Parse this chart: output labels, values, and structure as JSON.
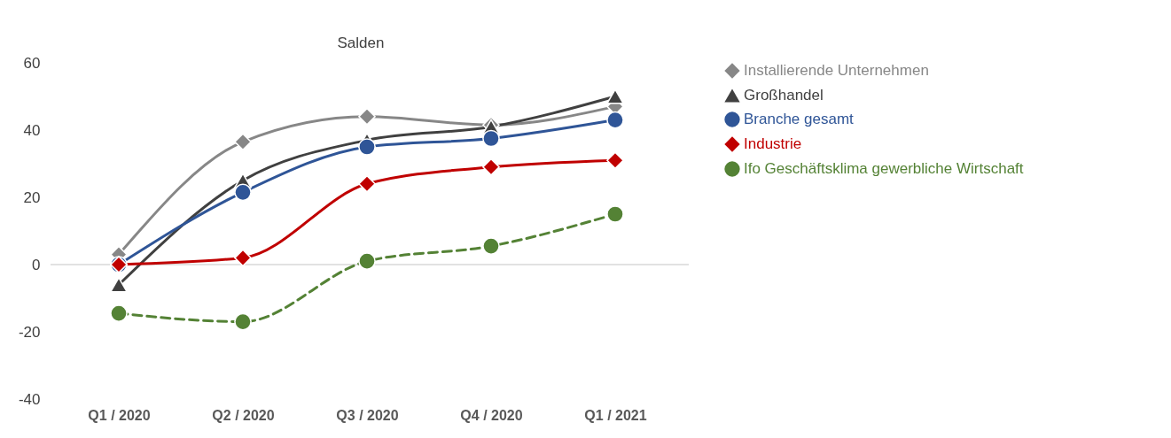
{
  "chart_data": {
    "type": "line",
    "title": "Salden",
    "categories": [
      "Q1 / 2020",
      "Q2 / 2020",
      "Q3 / 2020",
      "Q4 / 2020",
      "Q1 / 2021"
    ],
    "series": [
      {
        "name": "Installierende Unternehmen",
        "color": "#878787",
        "marker": "diamond",
        "line_style": "solid",
        "values": [
          3,
          36.5,
          44,
          41.5,
          47
        ]
      },
      {
        "name": "Großhandel",
        "color": "#404040",
        "marker": "triangle",
        "line_style": "solid",
        "values": [
          -6,
          25,
          37,
          41,
          50
        ]
      },
      {
        "name": "Branche gesamt",
        "color": "#2f5597",
        "marker": "circle",
        "line_style": "solid",
        "values": [
          0,
          21.5,
          35,
          37.5,
          43
        ]
      },
      {
        "name": "Industrie",
        "color": "#c00000",
        "marker": "diamond",
        "line_style": "solid",
        "values": [
          0,
          2,
          24,
          29,
          31
        ]
      },
      {
        "name": "Ifo Geschäftsklima gewerbliche Wirtschaft",
        "color": "#548235",
        "marker": "circle",
        "line_style": "dashed",
        "values": [
          -14.5,
          -17,
          1,
          5.5,
          15
        ]
      }
    ],
    "ylim": [
      -40,
      60
    ],
    "yticks": [
      -40,
      -20,
      0,
      20,
      40,
      60
    ],
    "grid": false,
    "legend": "right",
    "ref_lines": [
      {
        "axis": "y",
        "value": 0,
        "color": "#d9d9d9"
      }
    ]
  }
}
